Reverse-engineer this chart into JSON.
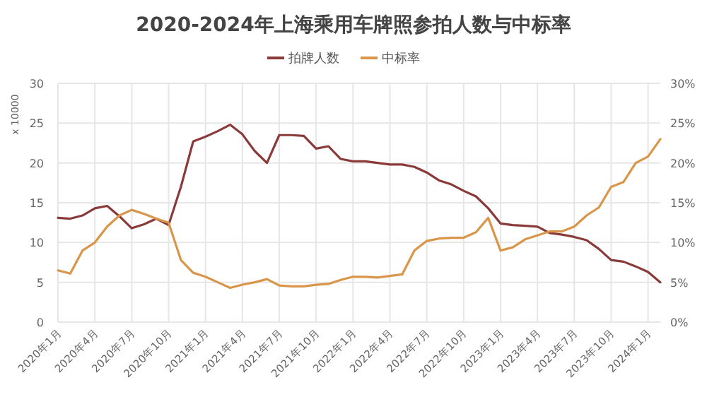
{
  "chart_data": {
    "type": "line",
    "title": "2020-2024年上海乘用车牌照参拍人数与中标率",
    "ylabel": "x 10000",
    "categories": [
      "2020年1月",
      null,
      null,
      "2020年4月",
      null,
      null,
      "2020年7月",
      null,
      null,
      "2020年10月",
      null,
      null,
      "2021年1月",
      null,
      null,
      "2021年4月",
      null,
      null,
      "2021年7月",
      null,
      null,
      "2021年10月",
      null,
      null,
      "2022年1月",
      null,
      null,
      "2022年4月",
      null,
      null,
      "2022年7月",
      null,
      null,
      "2022年10月",
      null,
      null,
      "2023年1月",
      null,
      null,
      "2023年4月",
      null,
      null,
      "2023年7月",
      null,
      null,
      "2023年10月",
      null,
      null,
      "2024年1月",
      null
    ],
    "series": [
      {
        "name": "拍牌人数",
        "color": "#8b3a3a",
        "values": [
          13.1,
          13.0,
          13.4,
          14.3,
          14.6,
          13.3,
          11.8,
          12.3,
          13.0,
          12.2,
          17.0,
          22.7,
          23.3,
          24.0,
          24.8,
          23.6,
          21.5,
          20.0,
          23.5,
          23.5,
          23.4,
          21.8,
          22.1,
          20.5,
          20.2,
          20.2,
          20.0,
          19.8,
          19.8,
          19.5,
          18.8,
          17.8,
          17.3,
          16.5,
          15.8,
          14.3,
          12.4,
          12.2,
          12.1,
          12.0,
          11.2,
          11.0,
          10.7,
          10.3,
          9.2,
          7.8,
          7.6,
          7.0,
          6.3,
          5.0
        ]
      },
      {
        "name": "中标率",
        "color": "#d9964a",
        "axis": "y2",
        "values": [
          6.5,
          6.1,
          9.0,
          10.0,
          12.0,
          13.4,
          14.1,
          13.6,
          13.0,
          12.5,
          7.8,
          6.2,
          5.7,
          5.0,
          4.3,
          4.7,
          5.0,
          5.4,
          4.6,
          4.5,
          4.5,
          4.7,
          4.8,
          5.3,
          5.7,
          5.7,
          5.6,
          5.8,
          6.0,
          9.0,
          10.2,
          10.5,
          10.6,
          10.6,
          11.3,
          13.1,
          9.0,
          9.4,
          10.4,
          10.9,
          11.4,
          11.4,
          12.0,
          13.4,
          14.4,
          17.0,
          17.6,
          20.0,
          20.8,
          23.0
        ]
      }
    ],
    "ylim": [
      0,
      30
    ],
    "yticks": [
      0,
      5,
      10,
      15,
      20,
      25,
      30
    ],
    "y2lim": [
      0,
      30
    ],
    "y2ticks": [
      {
        "value": 0,
        "label": "0%"
      },
      {
        "value": 5,
        "label": "5%"
      },
      {
        "value": 10,
        "label": "10%"
      },
      {
        "value": 15,
        "label": "15%"
      },
      {
        "value": 20,
        "label": "20%"
      },
      {
        "value": 25,
        "label": "25%"
      },
      {
        "value": 30,
        "label": "30%"
      }
    ],
    "grid": true,
    "legend": "top"
  }
}
